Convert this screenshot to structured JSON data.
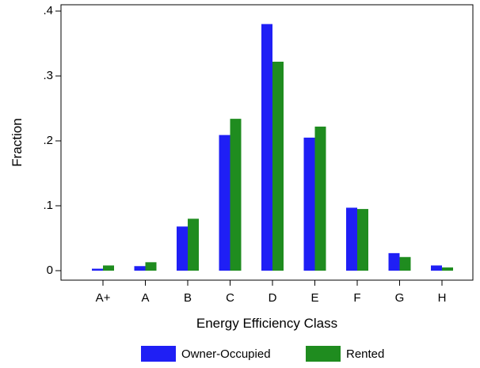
{
  "chart_data": {
    "type": "bar",
    "xlabel": "Energy Efficiency Class",
    "ylabel": "Fraction",
    "categories": [
      "A+",
      "A",
      "B",
      "C",
      "D",
      "E",
      "F",
      "G",
      "H"
    ],
    "ylim": [
      0,
      0.4
    ],
    "yticks": [
      {
        "value": 0,
        "label": "0"
      },
      {
        "value": 0.1,
        "label": ".1"
      },
      {
        "value": 0.2,
        "label": ".2"
      },
      {
        "value": 0.3,
        "label": ".3"
      },
      {
        "value": 0.4,
        "label": ".4"
      }
    ],
    "grid": false,
    "legend_position": "bottom",
    "series": [
      {
        "name": "Owner-Occupied",
        "color": "#1f1ff5",
        "values": [
          0.003,
          0.007,
          0.068,
          0.209,
          0.38,
          0.205,
          0.097,
          0.027,
          0.008
        ]
      },
      {
        "name": "Rented",
        "color": "#1f8c1f",
        "values": [
          0.008,
          0.013,
          0.08,
          0.234,
          0.322,
          0.222,
          0.095,
          0.021,
          0.005
        ]
      }
    ]
  }
}
